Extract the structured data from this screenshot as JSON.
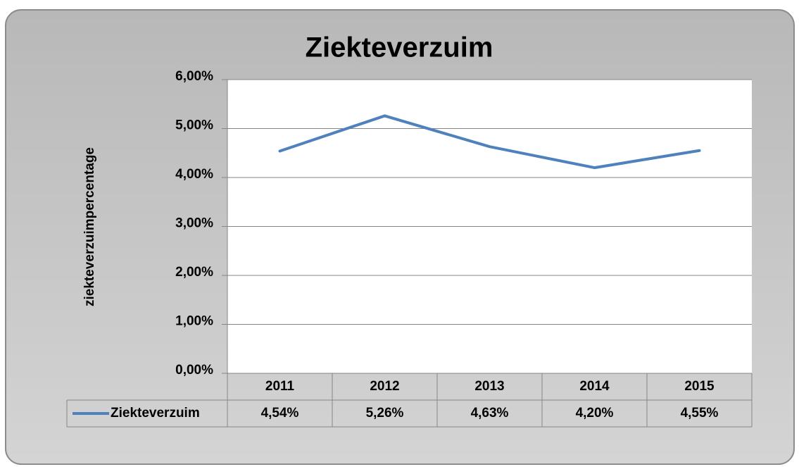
{
  "chart_data": {
    "type": "line",
    "title": "Ziekteverzuim",
    "y_label": "ziekteverzuimpercentage",
    "categories": [
      "2011",
      "2012",
      "2013",
      "2014",
      "2015"
    ],
    "series": [
      {
        "name": "Ziekteverzuim",
        "color": "#4f81bd",
        "values": [
          4.54,
          5.26,
          4.63,
          4.2,
          4.55
        ],
        "value_labels": [
          "4,54%",
          "5,26%",
          "4,63%",
          "4,20%",
          "4,55%"
        ]
      }
    ],
    "ylim": [
      0,
      6
    ],
    "yticks": [
      {
        "value": 0,
        "label": "0,00%"
      },
      {
        "value": 1,
        "label": "1,00%"
      },
      {
        "value": 2,
        "label": "2,00%"
      },
      {
        "value": 3,
        "label": "3,00%"
      },
      {
        "value": 4,
        "label": "4,00%"
      },
      {
        "value": 5,
        "label": "5,00%"
      },
      {
        "value": 6,
        "label": "6,00%"
      }
    ],
    "grid": true,
    "data_table": true
  }
}
